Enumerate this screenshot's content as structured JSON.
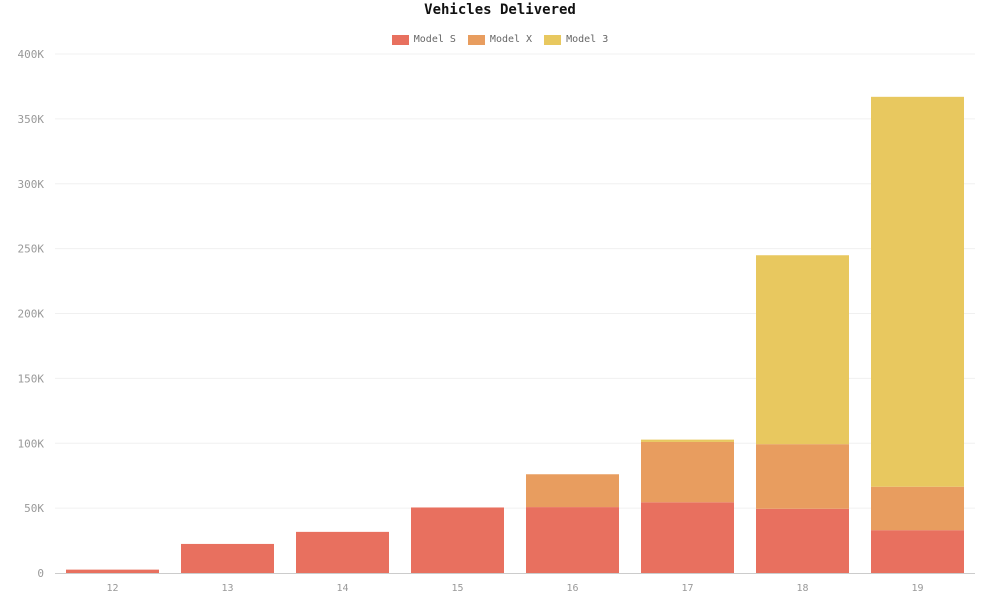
{
  "chart_data": {
    "type": "bar",
    "stacked": true,
    "title": "Vehicles Delivered",
    "xlabel": "",
    "ylabel": "",
    "categories": [
      "12",
      "13",
      "14",
      "15",
      "16",
      "17",
      "18",
      "19"
    ],
    "series": [
      {
        "name": "Model S",
        "color": "#e8705f",
        "values": [
          2600,
          22400,
          31700,
          50500,
          50800,
          54500,
          49500,
          33000
        ]
      },
      {
        "name": "Model X",
        "color": "#e89d5f",
        "values": [
          0,
          0,
          0,
          0,
          25300,
          46500,
          49800,
          33500
        ]
      },
      {
        "name": "Model 3",
        "color": "#e8c85f",
        "values": [
          0,
          0,
          0,
          0,
          0,
          1800,
          145600,
          300500
        ]
      }
    ],
    "ylim": [
      0,
      400000
    ],
    "yticks": [
      {
        "value": 0,
        "label": "0"
      },
      {
        "value": 50000,
        "label": "50K"
      },
      {
        "value": 100000,
        "label": "100K"
      },
      {
        "value": 150000,
        "label": "150K"
      },
      {
        "value": 200000,
        "label": "200K"
      },
      {
        "value": 250000,
        "label": "250K"
      },
      {
        "value": 300000,
        "label": "300K"
      },
      {
        "value": 350000,
        "label": "350K"
      },
      {
        "value": 400000,
        "label": "400K"
      }
    ],
    "grid": true,
    "legend_position": "top-center"
  }
}
